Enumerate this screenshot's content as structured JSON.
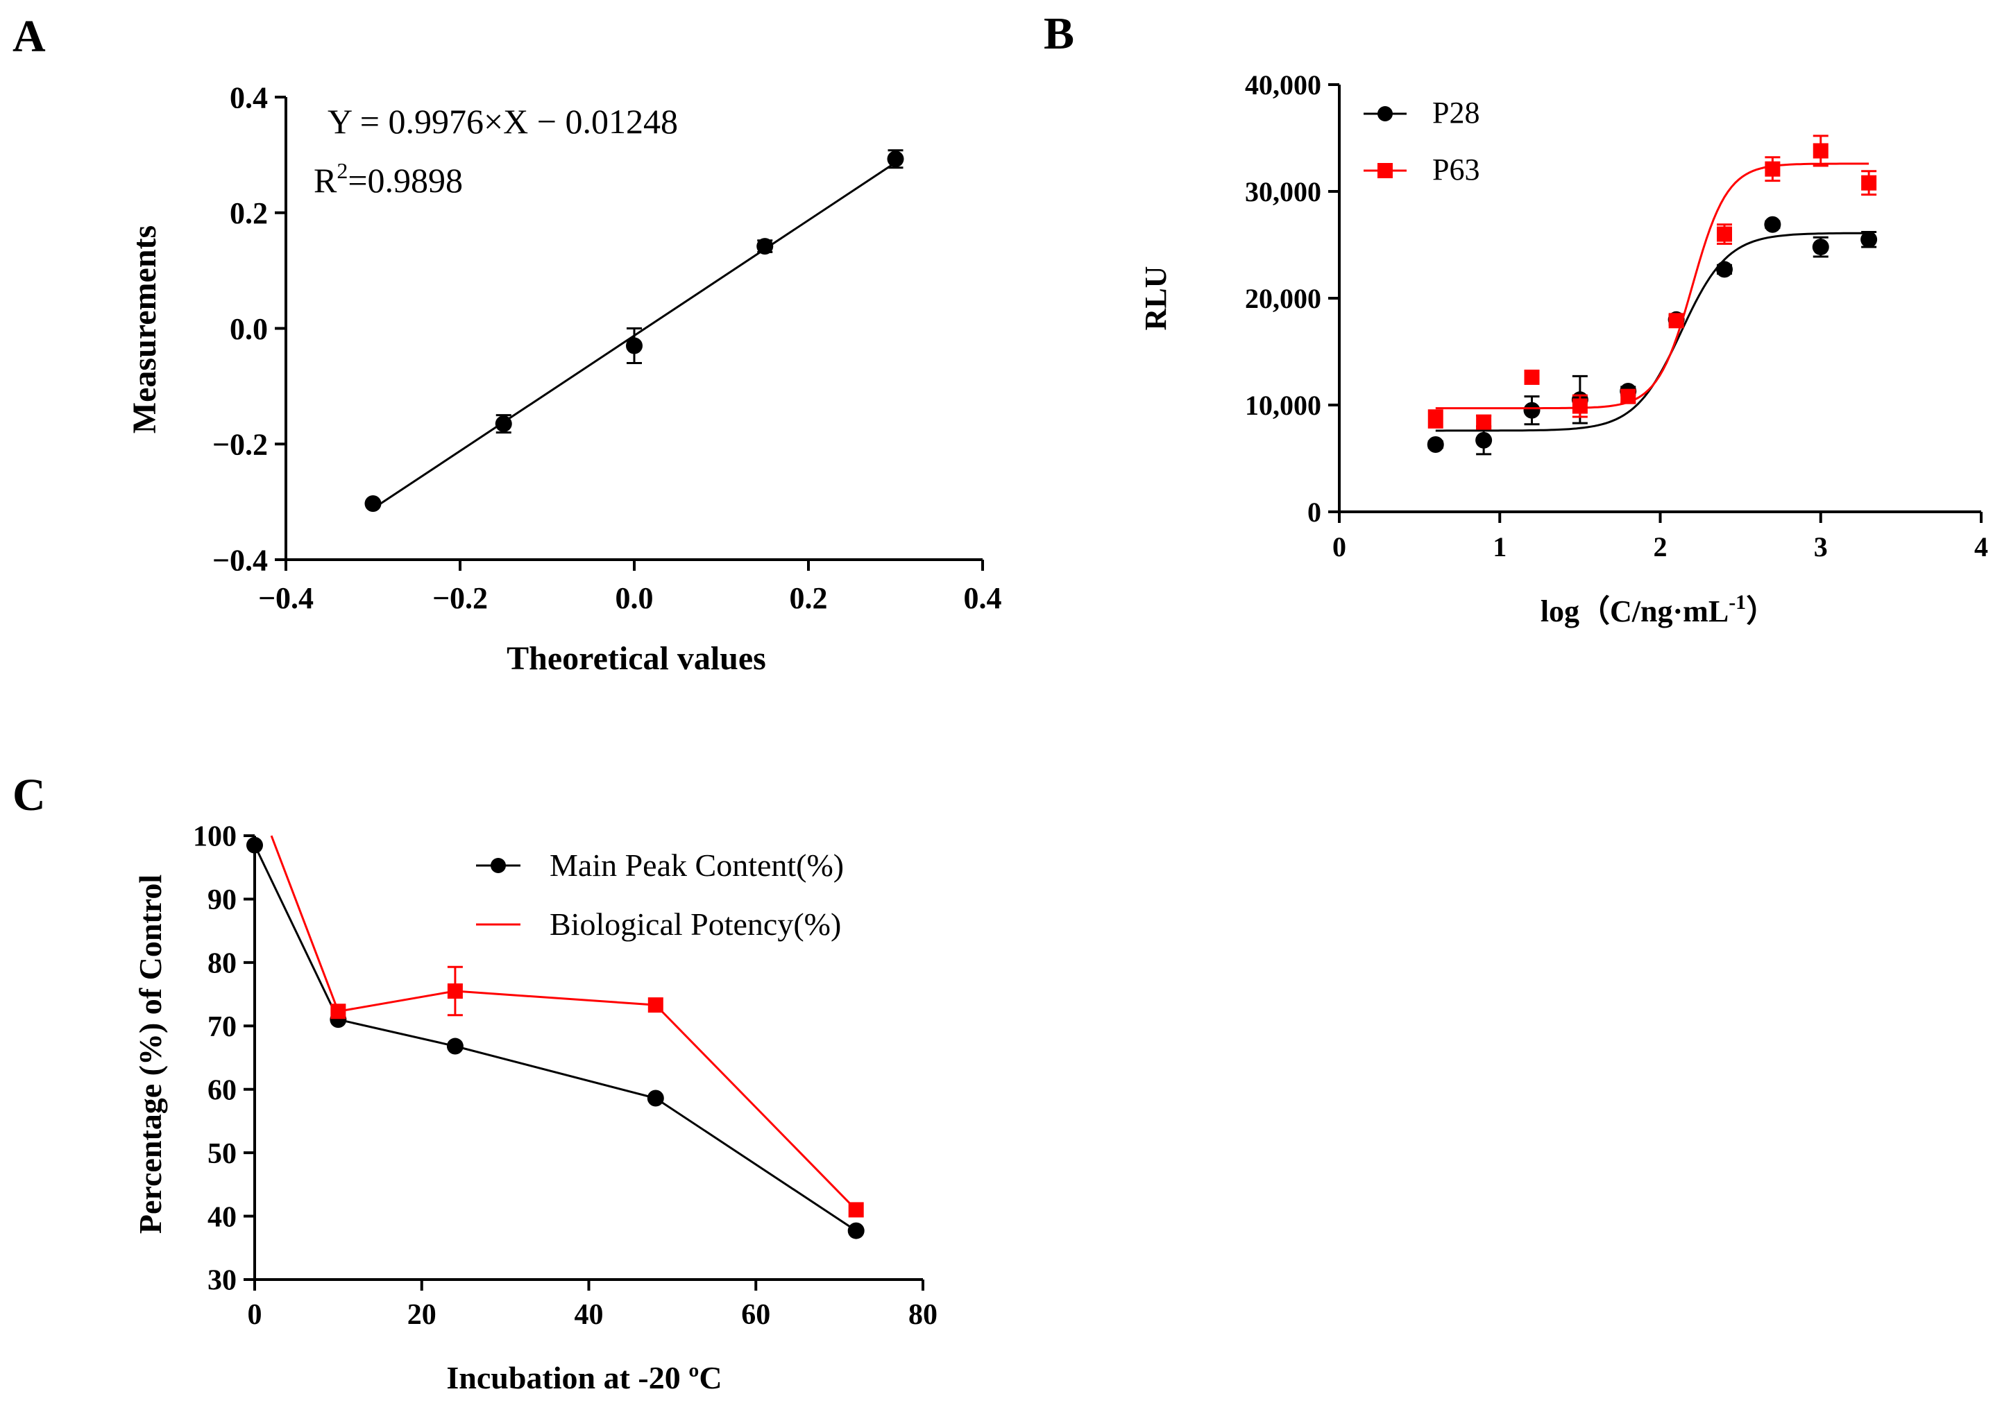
{
  "colors": {
    "black": "#000000",
    "red": "#ff0000",
    "background": "#ffffff"
  },
  "chart_data": [
    {
      "panel": "A",
      "type": "scatter",
      "xlabel": "Theoretical values",
      "ylabel": "Measurements",
      "xlim": [
        -0.4,
        0.4
      ],
      "ylim": [
        -0.4,
        0.4
      ],
      "xticks": [
        "−0.4",
        "−0.2",
        "0.0",
        "0.2",
        "0.4"
      ],
      "yticks": [
        "−0.4",
        "−0.2",
        "0.0",
        "0.2",
        "0.4"
      ],
      "equation": "Y = 0.9976×X − 0.01248",
      "r2_prefix": "R",
      "r2_sup": "2",
      "r2_value": "=0.9898",
      "fit": {
        "slope": 0.9976,
        "intercept": -0.01248
      },
      "series": [
        {
          "name": "Measurements",
          "color": "#000000",
          "marker": "circle",
          "x": [
            -0.3,
            -0.15,
            0.0,
            0.15,
            0.3
          ],
          "y": [
            -0.303,
            -0.165,
            -0.03,
            0.142,
            0.293
          ],
          "err": [
            0.004,
            0.015,
            0.03,
            0.01,
            0.015
          ]
        }
      ]
    },
    {
      "panel": "B",
      "type": "scatter",
      "xlabel_main": "log（C/ng·mL",
      "xlabel_sup": "-1",
      "xlabel_close": "）",
      "ylabel": "RLU",
      "xlim": [
        0,
        4
      ],
      "ylim": [
        0,
        40000
      ],
      "xticks": [
        "0",
        "1",
        "2",
        "3",
        "4"
      ],
      "yticks": [
        "0",
        "10,000",
        "20,000",
        "30,000",
        "40,000"
      ],
      "legend_position": "top-left",
      "series": [
        {
          "name": "P28",
          "color": "#000000",
          "marker": "circle",
          "x": [
            0.6,
            0.9,
            1.2,
            1.5,
            1.8,
            2.1,
            2.4,
            2.7,
            3.0,
            3.3
          ],
          "y": [
            6300,
            6700,
            9500,
            10500,
            11300,
            18000,
            22700,
            26900,
            24800,
            25500
          ],
          "err": [
            300,
            1300,
            1300,
            2200,
            400,
            400,
            400,
            300,
            900,
            700
          ],
          "fit": {
            "bottom": 7600,
            "top": 26100,
            "ec50_log": 2.13,
            "hill": 3.0
          }
        },
        {
          "name": "P63",
          "color": "#ff0000",
          "marker": "square",
          "x": [
            0.6,
            0.9,
            1.2,
            1.5,
            1.8,
            2.1,
            2.4,
            2.7,
            3.0,
            3.3
          ],
          "y": [
            8700,
            8400,
            12600,
            9900,
            10800,
            17900,
            26000,
            32100,
            33800,
            30800
          ],
          "err": [
            800,
            600,
            500,
            1000,
            600,
            400,
            900,
            1100,
            1400,
            1100
          ],
          "fit": {
            "bottom": 9700,
            "top": 32600,
            "ec50_log": 2.2,
            "hill": 4.0
          }
        }
      ]
    },
    {
      "panel": "C",
      "type": "line",
      "xlabel": "Incubation at -20 ºC",
      "ylabel": "Percentage (%) of Control",
      "xlim": [
        0,
        80
      ],
      "ylim": [
        30,
        100
      ],
      "xticks": [
        "0",
        "20",
        "40",
        "60",
        "80"
      ],
      "yticks": [
        "30",
        "40",
        "50",
        "60",
        "70",
        "80",
        "90",
        "100"
      ],
      "legend_position": "top-right",
      "series": [
        {
          "name": "Main Peak Content(%)",
          "color": "#000000",
          "marker": "circle",
          "x": [
            0,
            10,
            24,
            48,
            72
          ],
          "y": [
            98.5,
            71,
            66.8,
            58.6,
            37.7
          ]
        },
        {
          "name": "Biological Potency(%)",
          "color": "#ff0000",
          "marker": "square",
          "x": [
            2,
            10,
            24,
            48,
            72
          ],
          "y": [
            100,
            72.3,
            75.5,
            73.3,
            41
          ],
          "err": [
            0,
            0,
            3.8,
            0,
            0
          ]
        }
      ]
    }
  ]
}
